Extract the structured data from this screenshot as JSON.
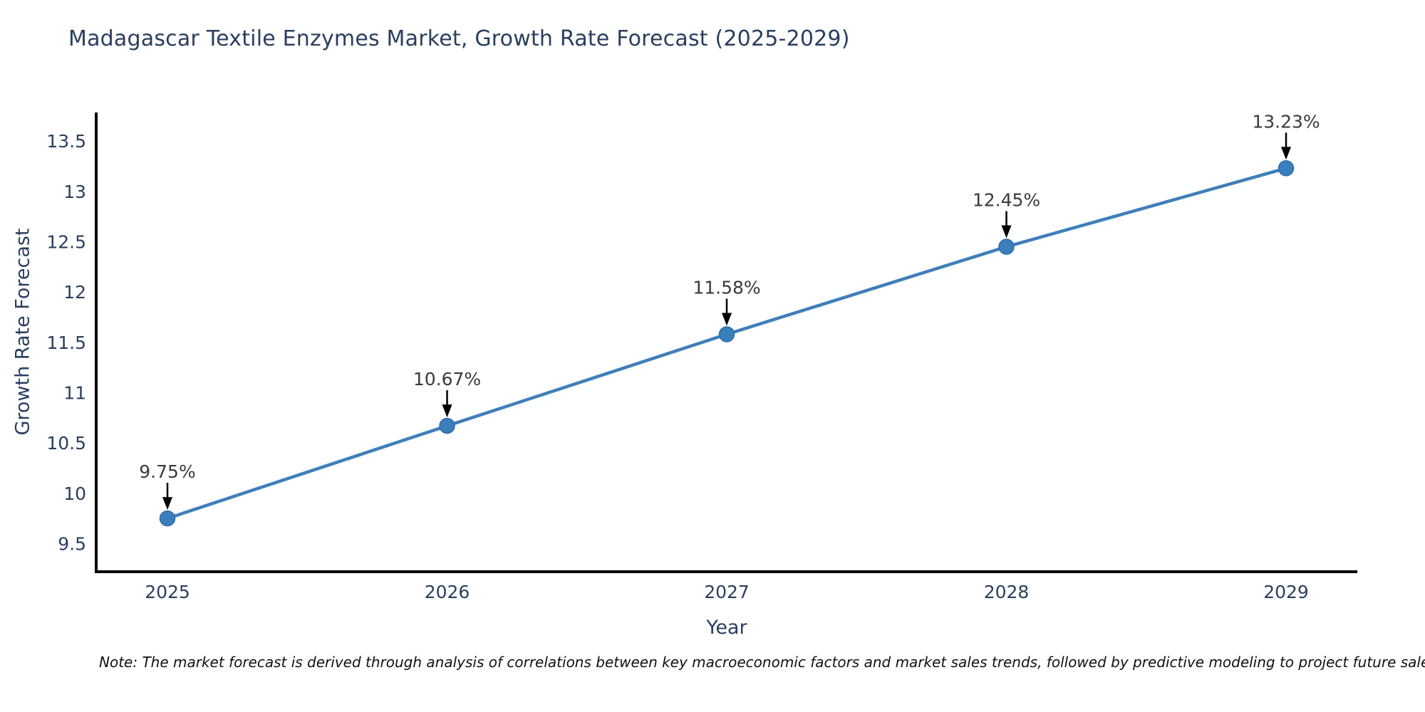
{
  "chart_data": {
    "type": "line",
    "title": "Madagascar Textile Enzymes Market, Growth Rate Forecast (2025-2029)",
    "xlabel": "Year",
    "ylabel": "Growth Rate Forecast",
    "x": [
      2025,
      2026,
      2027,
      2028,
      2029
    ],
    "series": [
      {
        "name": "Growth Rate Forecast",
        "values": [
          9.75,
          10.67,
          11.58,
          12.45,
          13.23
        ]
      }
    ],
    "point_labels": [
      "9.75%",
      "10.67%",
      "11.58%",
      "12.45%",
      "13.23%"
    ],
    "yticks": [
      9.5,
      10,
      10.5,
      11,
      11.5,
      12,
      12.5,
      13,
      13.5
    ],
    "ylim": [
      9.22,
      13.77
    ],
    "grid": false,
    "legend": "none",
    "marker": "circle",
    "annotation_style": "value label with downward arrow to point"
  },
  "footnote": "Note: The market forecast is derived through analysis of correlations between key macroeconomic factors and market sales trends, followed by predictive modeling to project future sales",
  "colors": {
    "line": "#3f7fba",
    "marker": "#3a7ebc",
    "marker_edge": "#2f6da8",
    "axis": "#000000",
    "tick_label": "#2a3f5f",
    "title": "#2a3f5f",
    "axis_title": "#2a3f5f",
    "annotation_text": "#3a3a3a",
    "annotation_arrow": "#000000",
    "footnote_text": "#111111",
    "background": "#ffffff"
  }
}
